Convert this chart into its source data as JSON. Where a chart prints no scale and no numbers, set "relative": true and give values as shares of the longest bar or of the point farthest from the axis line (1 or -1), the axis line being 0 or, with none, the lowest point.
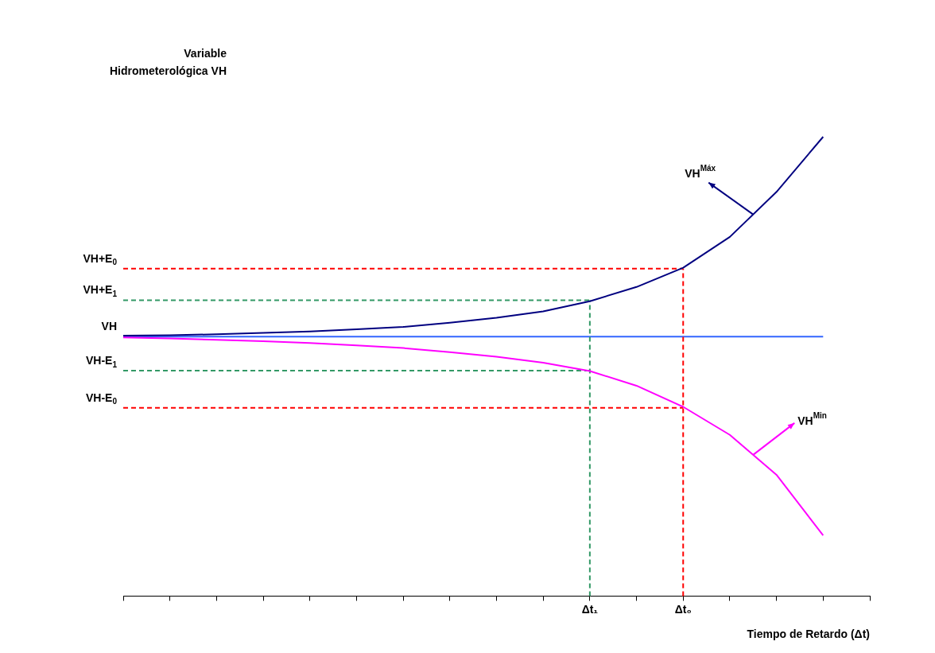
{
  "chart_data": {
    "type": "line",
    "relative": true,
    "xlabel": "Tiempo de Retardo (Δt)",
    "categories": [
      null,
      null,
      null,
      null,
      null,
      null,
      null,
      null,
      null,
      null,
      "Δt₁",
      null,
      "Δt₀",
      null,
      null,
      null,
      null
    ],
    "series": [
      {
        "color": "#000080",
        "values": [
          0.567,
          0.568,
          0.57,
          0.573,
          0.576,
          0.581,
          0.586,
          0.595,
          0.606,
          0.62,
          0.642,
          0.673,
          0.715,
          0.782,
          0.88,
          1,
          null
        ]
      },
      {
        "color": "#ff00ff",
        "values": [
          0.563,
          0.561,
          0.558,
          0.555,
          0.551,
          0.546,
          0.54,
          0.531,
          0.521,
          0.508,
          0.49,
          0.458,
          0.412,
          0.351,
          0.264,
          0.132,
          null
        ]
      }
    ],
    "ref_lines": [
      {
        "axis": "y",
        "value": 0.565,
        "label": "VH",
        "color": "#3366ff",
        "line_style": "solid"
      },
      {
        "axis": "y",
        "value": 0.713,
        "label": "VH+E$_{0}$",
        "color": "#ff0000",
        "line_style": "dashed"
      },
      {
        "axis": "y",
        "value": 0.644,
        "label": "VH+E$_{1}$",
        "color": "#339966",
        "line_style": "dashed"
      },
      {
        "axis": "y",
        "value": 0.491,
        "label": "VH-E$_{1}$",
        "color": "#339966",
        "line_style": "dashed"
      },
      {
        "axis": "y",
        "value": 0.41,
        "label": "VH-E$_{0}$",
        "color": "#ff0000",
        "line_style": "dashed"
      },
      {
        "axis": "x",
        "value": "Δt₁",
        "color": "#339966",
        "line_style": "dashed"
      },
      {
        "axis": "x",
        "value": "Δt₀",
        "color": "#ff0000",
        "line_style": "dashed"
      }
    ],
    "annotations": [
      "VH$^{Máx}$",
      "VH$^{Min}$",
      "Variable\nHidrometerológica VH"
    ],
    "legend": false
  }
}
